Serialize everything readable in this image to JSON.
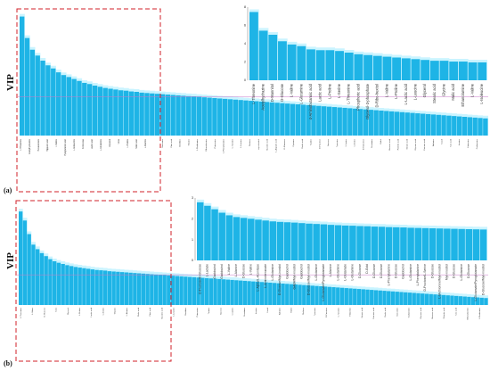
{
  "chart_data": [
    {
      "panel": "(a)",
      "type": "bar",
      "ylabel": "VIP",
      "bar_color": "#1eb4e6",
      "glow_color": "#b8f0ff",
      "highlight_box_color": "#d0202a",
      "threshold_line_color": "#c878c8",
      "threshold": 1.0,
      "xlabels_top": [
        "L-Threonine",
        "Acetylhydrazine",
        "Hexadecane",
        "Hippuric acid",
        "L-Valine",
        "Pyroglutamic acid",
        "L-Isoleucine",
        "D-Glucose",
        "Lactic acid",
        "L-Glutamine",
        "Glycerol",
        "Urea",
        "L-Proline",
        "Malic acid",
        "L-Alanine"
      ],
      "xlabels_bottom": [
        "Sarcosine",
        "Citric acid",
        "Ornithine",
        "Glycine",
        "L-Methionine",
        "Ethanolamine",
        "Putrescine",
        "L-Phenylalanine",
        "L-Tyrosine",
        "L-Leucine",
        "Maltose",
        "myo-Inositol",
        "Succinic acid",
        "L-Aspartic acid",
        "D-Mannose",
        "Cysteine",
        "Oxalic acid",
        "Taurine",
        "D-Fructose",
        "Sucrose",
        "Tyramine",
        "L-Lysine",
        "L-Serine",
        "D-Galactose",
        "Creatinine",
        "Xylitol",
        "Benzoic acid",
        "Palmitic acid",
        "Stearic acid",
        "Glyceric acid",
        "Fumaric acid",
        "Adenine",
        "Uracil",
        "Uric acid",
        "Inosine",
        "Histamine",
        "Cadaverine"
      ],
      "values": [
        3.05,
        2.5,
        2.2,
        2.05,
        1.92,
        1.8,
        1.72,
        1.62,
        1.55,
        1.5,
        1.45,
        1.4,
        1.35,
        1.32,
        1.28,
        1.25,
        1.22,
        1.2,
        1.18,
        1.16,
        1.15,
        1.13,
        1.12,
        1.1,
        1.09,
        1.08,
        1.07,
        1.06,
        1.05,
        1.04,
        1.03,
        1.02,
        1.01,
        1.0,
        0.99,
        0.98,
        0.97,
        0.96,
        0.95,
        0.94,
        0.93,
        0.92,
        0.91,
        0.9,
        0.89,
        0.88,
        0.87,
        0.86,
        0.85,
        0.84,
        0.83,
        0.82,
        0.81,
        0.8,
        0.79,
        0.78,
        0.77,
        0.76,
        0.75,
        0.74,
        0.73,
        0.72,
        0.71,
        0.7,
        0.69,
        0.68,
        0.67,
        0.66,
        0.65,
        0.64,
        0.63,
        0.62,
        0.61,
        0.6,
        0.59,
        0.58,
        0.57,
        0.56,
        0.55,
        0.54,
        0.53,
        0.52,
        0.51,
        0.5,
        0.49,
        0.48,
        0.47,
        0.46,
        0.45,
        0.44
      ],
      "ylim": [
        0,
        3.2
      ],
      "inset": {
        "yticks": [
          "8",
          "6",
          "4",
          "2",
          "0"
        ],
        "categories": [
          "L-Threonine",
          "Acetylhydrazine",
          "D-Mannitol",
          "D-Glucose",
          "L-Valine",
          "L-Glutamine",
          "4-Aminobutanoic acid",
          "Lactic acid",
          "L-Proline",
          "L-Serine",
          "L-Threonine",
          "Phosphoric acid",
          "Glycerol-3-phosphate",
          "D-Ribo-hexitol",
          "L-Valine",
          "L-Proline",
          "L-Lactic acid",
          "L-Leucine",
          "Glycerol",
          "Stearic acid",
          "Glycine",
          "Malic acid",
          "Ethanolamine",
          "L-Valine",
          "L-Isoleucine"
        ],
        "values": [
          8.4,
          6.1,
          5.6,
          4.8,
          4.4,
          4.2,
          3.8,
          3.7,
          3.7,
          3.6,
          3.4,
          3.2,
          3.1,
          3.0,
          2.9,
          2.8,
          2.7,
          2.6,
          2.5,
          2.4,
          2.4,
          2.3,
          2.3,
          2.2,
          2.2
        ],
        "ylim": [
          0,
          9
        ]
      }
    },
    {
      "panel": "(b)",
      "type": "bar",
      "ylabel": "VIP",
      "bar_color": "#1eb4e6",
      "glow_color": "#b8f0ff",
      "highlight_box_color": "#d0202a",
      "threshold_line_color": "#c878c8",
      "threshold": 1.0,
      "xlabels_bottom": [
        "L-Threonine",
        "L-Valine",
        "D-Glucose",
        "Urea",
        "Glycerol",
        "L-Proline",
        "Lactic acid",
        "L-Serine",
        "Glycine",
        "L-Alanine",
        "Malic acid",
        "Citric acid",
        "Succinic acid",
        "L-Leucine",
        "Ornithine",
        "Putrescine",
        "Taurine",
        "Sucrose",
        "L-Lysine",
        "Creatinine",
        "Inosine",
        "Uracil",
        "Adenine",
        "Xylitol",
        "Maltose",
        "Tyramine",
        "D-Fructose",
        "L-Tyrosine",
        "Histamine",
        "Stearic acid",
        "Fumaric acid",
        "Oxalic acid",
        "Sarcosine",
        "Cadaverine",
        "Glyceric acid",
        "Benzoic acid",
        "Palmitic acid",
        "Uric acid",
        "Ethanolamine",
        "L-Methionine"
      ],
      "values": [
        3.1,
        2.8,
        2.35,
        2.0,
        1.85,
        1.72,
        1.62,
        1.52,
        1.45,
        1.4,
        1.36,
        1.32,
        1.29,
        1.26,
        1.24,
        1.22,
        1.2,
        1.18,
        1.16,
        1.15,
        1.14,
        1.12,
        1.11,
        1.1,
        1.09,
        1.08,
        1.07,
        1.06,
        1.05,
        1.04,
        1.03,
        1.02,
        1.01,
        1.0,
        0.99,
        0.98,
        0.97,
        0.96,
        0.95,
        0.94,
        0.93,
        0.92,
        0.91,
        0.9,
        0.89,
        0.88,
        0.87,
        0.86,
        0.85,
        0.84,
        0.83,
        0.82,
        0.81,
        0.8,
        0.79,
        0.78,
        0.77,
        0.76,
        0.75,
        0.74,
        0.73,
        0.72,
        0.71,
        0.7,
        0.69,
        0.68,
        0.67,
        0.66,
        0.65,
        0.64,
        0.63,
        0.62,
        0.61,
        0.6,
        0.59,
        0.58,
        0.57,
        0.56,
        0.55,
        0.54,
        0.53,
        0.52,
        0.51,
        0.5,
        0.49,
        0.48,
        0.47,
        0.46,
        0.45,
        0.44,
        0.43,
        0.42,
        0.41,
        0.4,
        0.39,
        0.38,
        0.37,
        0.36,
        0.35,
        0.34,
        0.33,
        0.32,
        0.31,
        0.3,
        0.29,
        0.28,
        0.27,
        0.26,
        0.25,
        0.24,
        0.23
      ],
      "ylim": [
        0,
        3.4
      ],
      "inset": {
        "yticks": [
          "3",
          "2",
          "1",
          "0"
        ],
        "categories": [
          "D-Fructose/D-Glucose",
          "L-Lactate",
          "Gadobutrol",
          "Gadobutrol",
          "L-Valine",
          "L-Alanine",
          "D-Glucose",
          "L-Valine",
          "L-Alpha/L-Aconitase",
          "L-Aminobenzoate",
          "L-Glutamine",
          "D-Glucose/Myo-inositol",
          "Gadobutrol",
          "GABA/Myo-inositol",
          "Gadobutrol",
          "D-Glucose/Myo-inositol",
          "L-Glutamine",
          "L-Glutamate/Pyroglutamate",
          "L-Alanine",
          "L-Glutamine",
          "L-Glutamate",
          "L-Glutamine",
          "D-Glucose",
          "D-Gold",
          "D-Glucose",
          "D-Glucose",
          "L-Phenylalanine",
          "D-Glucose",
          "Gadobutrol",
          "L-Glutamine",
          "L-Phenylalanine",
          "D-Fructose/L-Serine",
          "D-Glucose",
          "L-Methionine/Myo-inositol",
          "Myo-inositol",
          "D-Glucose",
          "L-Glutamine",
          "D-Glucose",
          "L-Glutamate/Pyroglutamate",
          "D-Glucose/Myo-inositol"
        ],
        "values": [
          3.35,
          3.15,
          2.95,
          2.75,
          2.6,
          2.5,
          2.45,
          2.4,
          2.35,
          2.3,
          2.25,
          2.22,
          2.2,
          2.18,
          2.15,
          2.12,
          2.1,
          2.08,
          2.05,
          2.03,
          2.01,
          2.0,
          1.98,
          1.97,
          1.95,
          1.94,
          1.92,
          1.91,
          1.9,
          1.88,
          1.87,
          1.86,
          1.85,
          1.84,
          1.83,
          1.82,
          1.81,
          1.8,
          1.79,
          1.78
        ],
        "ylim": [
          0,
          3.6
        ]
      }
    }
  ]
}
